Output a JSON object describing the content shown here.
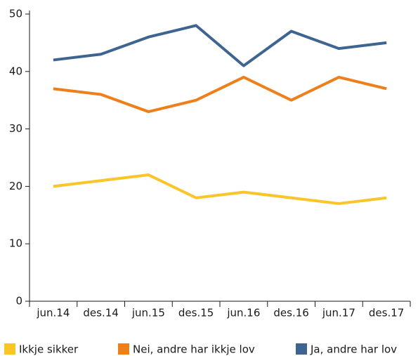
{
  "chart_data": {
    "type": "line",
    "categories": [
      "jun.14",
      "des.14",
      "jun.15",
      "des.15",
      "jun.16",
      "des.16",
      "jun.17",
      "des.17"
    ],
    "series": [
      {
        "name": "Ikkje sikker",
        "color": "#f9c529",
        "values": [
          20,
          21,
          22,
          18,
          19,
          18,
          17,
          18
        ]
      },
      {
        "name": "Nei, andre har ikkje lov",
        "color": "#ee7f1a",
        "values": [
          37,
          36,
          33,
          35,
          39,
          35,
          39,
          37
        ]
      },
      {
        "name": "Ja, andre har lov",
        "color": "#3e6591",
        "values": [
          42,
          43,
          46,
          48,
          41,
          47,
          44,
          45
        ]
      }
    ],
    "ylim": [
      0,
      50
    ],
    "yticks": [
      0,
      10,
      20,
      30,
      40,
      50
    ],
    "grid": false,
    "legend": "bottom"
  }
}
